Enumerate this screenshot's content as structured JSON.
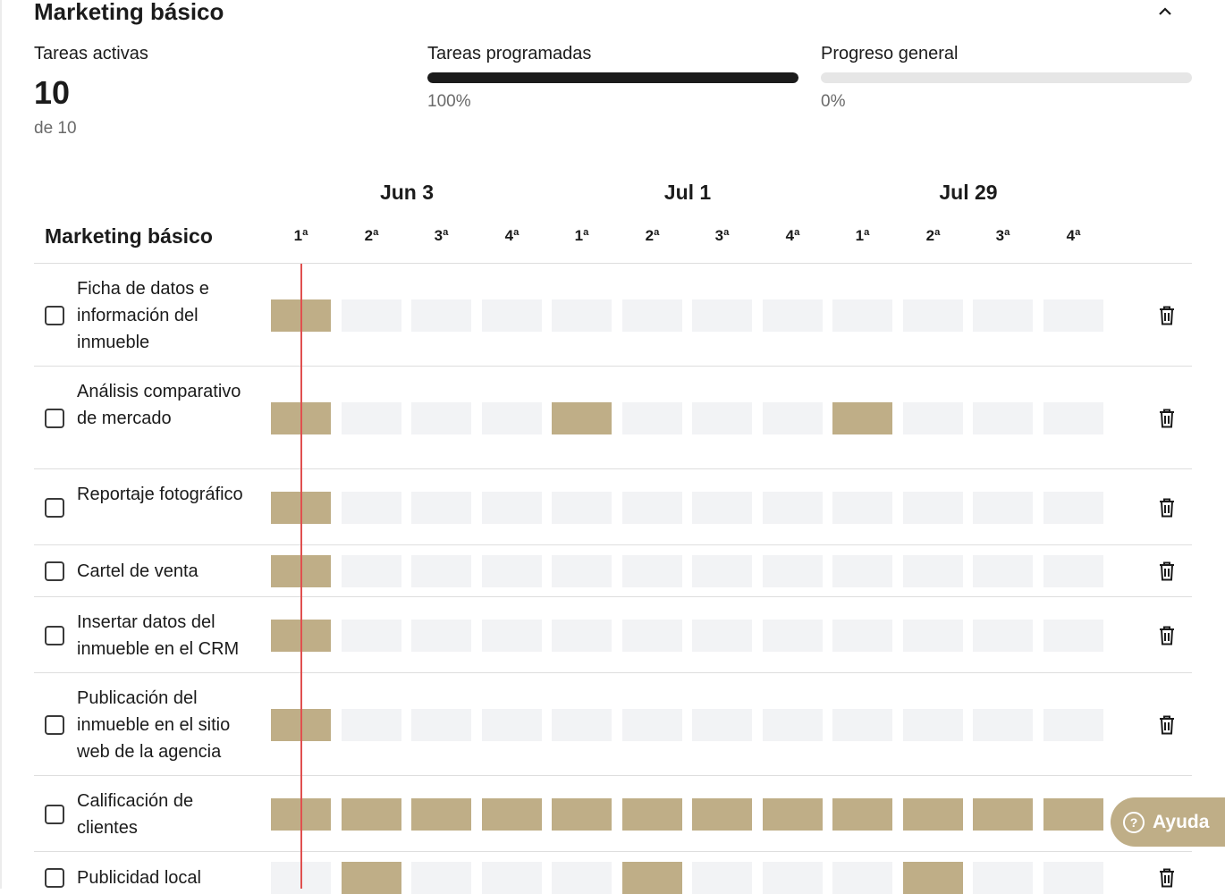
{
  "section": {
    "title": "Marketing básico"
  },
  "stats": {
    "active_label": "Tareas activas",
    "active_value": "10",
    "active_total": "de 10",
    "scheduled_label": "Tareas programadas",
    "scheduled_pct": "100%",
    "scheduled_value": 100,
    "progress_label": "Progreso general",
    "progress_pct": "0%",
    "progress_value": 0
  },
  "timeline": {
    "header_title": "Marketing básico",
    "months": [
      "Jun 3",
      "Jul 1",
      "Jul 29"
    ],
    "weeks": [
      "1ª",
      "2ª",
      "3ª",
      "4ª",
      "1ª",
      "2ª",
      "3ª",
      "4ª",
      "1ª",
      "2ª",
      "3ª",
      "4ª"
    ],
    "current_week_index": 0
  },
  "tasks": [
    {
      "name": "Ficha de datos e información del inmueble",
      "weeks": [
        1,
        0,
        0,
        0,
        0,
        0,
        0,
        0,
        0,
        0,
        0,
        0
      ]
    },
    {
      "name": "Análisis comparativo de mercado",
      "weeks": [
        1,
        0,
        0,
        0,
        1,
        0,
        0,
        0,
        1,
        0,
        0,
        0
      ]
    },
    {
      "name": "Reportaje fotográfico",
      "weeks": [
        1,
        0,
        0,
        0,
        0,
        0,
        0,
        0,
        0,
        0,
        0,
        0
      ]
    },
    {
      "name": "Cartel de venta",
      "weeks": [
        1,
        0,
        0,
        0,
        0,
        0,
        0,
        0,
        0,
        0,
        0,
        0
      ]
    },
    {
      "name": "Insertar datos del inmueble en el CRM",
      "weeks": [
        1,
        0,
        0,
        0,
        0,
        0,
        0,
        0,
        0,
        0,
        0,
        0
      ]
    },
    {
      "name": "Publicación del inmueble en el sitio web de la agencia",
      "weeks": [
        1,
        0,
        0,
        0,
        0,
        0,
        0,
        0,
        0,
        0,
        0,
        0
      ]
    },
    {
      "name": "Calificación de clientes",
      "weeks": [
        1,
        1,
        1,
        1,
        1,
        1,
        1,
        1,
        1,
        1,
        1,
        1
      ]
    },
    {
      "name": "Publicidad local",
      "weeks": [
        0,
        1,
        0,
        0,
        0,
        1,
        0,
        0,
        0,
        1,
        0,
        0
      ]
    }
  ],
  "help": {
    "label": "Ayuda"
  },
  "colors": {
    "scheduled": "#bfae87",
    "empty": "#f2f3f5",
    "today": "#e0504f",
    "bar": "#1b1b1b"
  }
}
